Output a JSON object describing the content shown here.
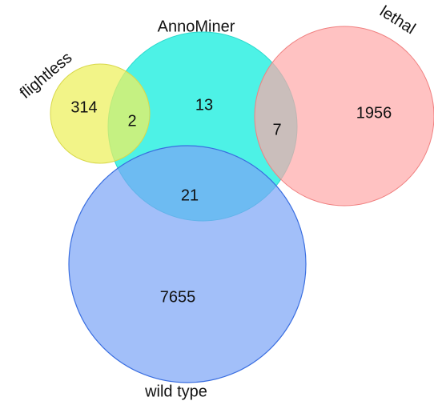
{
  "sets": [
    {
      "name": "flightless"
    },
    {
      "name": "AnnoMiner"
    },
    {
      "name": "lethal"
    },
    {
      "name": "wild type"
    }
  ],
  "regions": [
    {
      "value": 314
    },
    {
      "value": 2
    },
    {
      "value": 13
    },
    {
      "value": 7
    },
    {
      "value": 1956
    },
    {
      "value": 21
    },
    {
      "value": 7655
    }
  ]
}
